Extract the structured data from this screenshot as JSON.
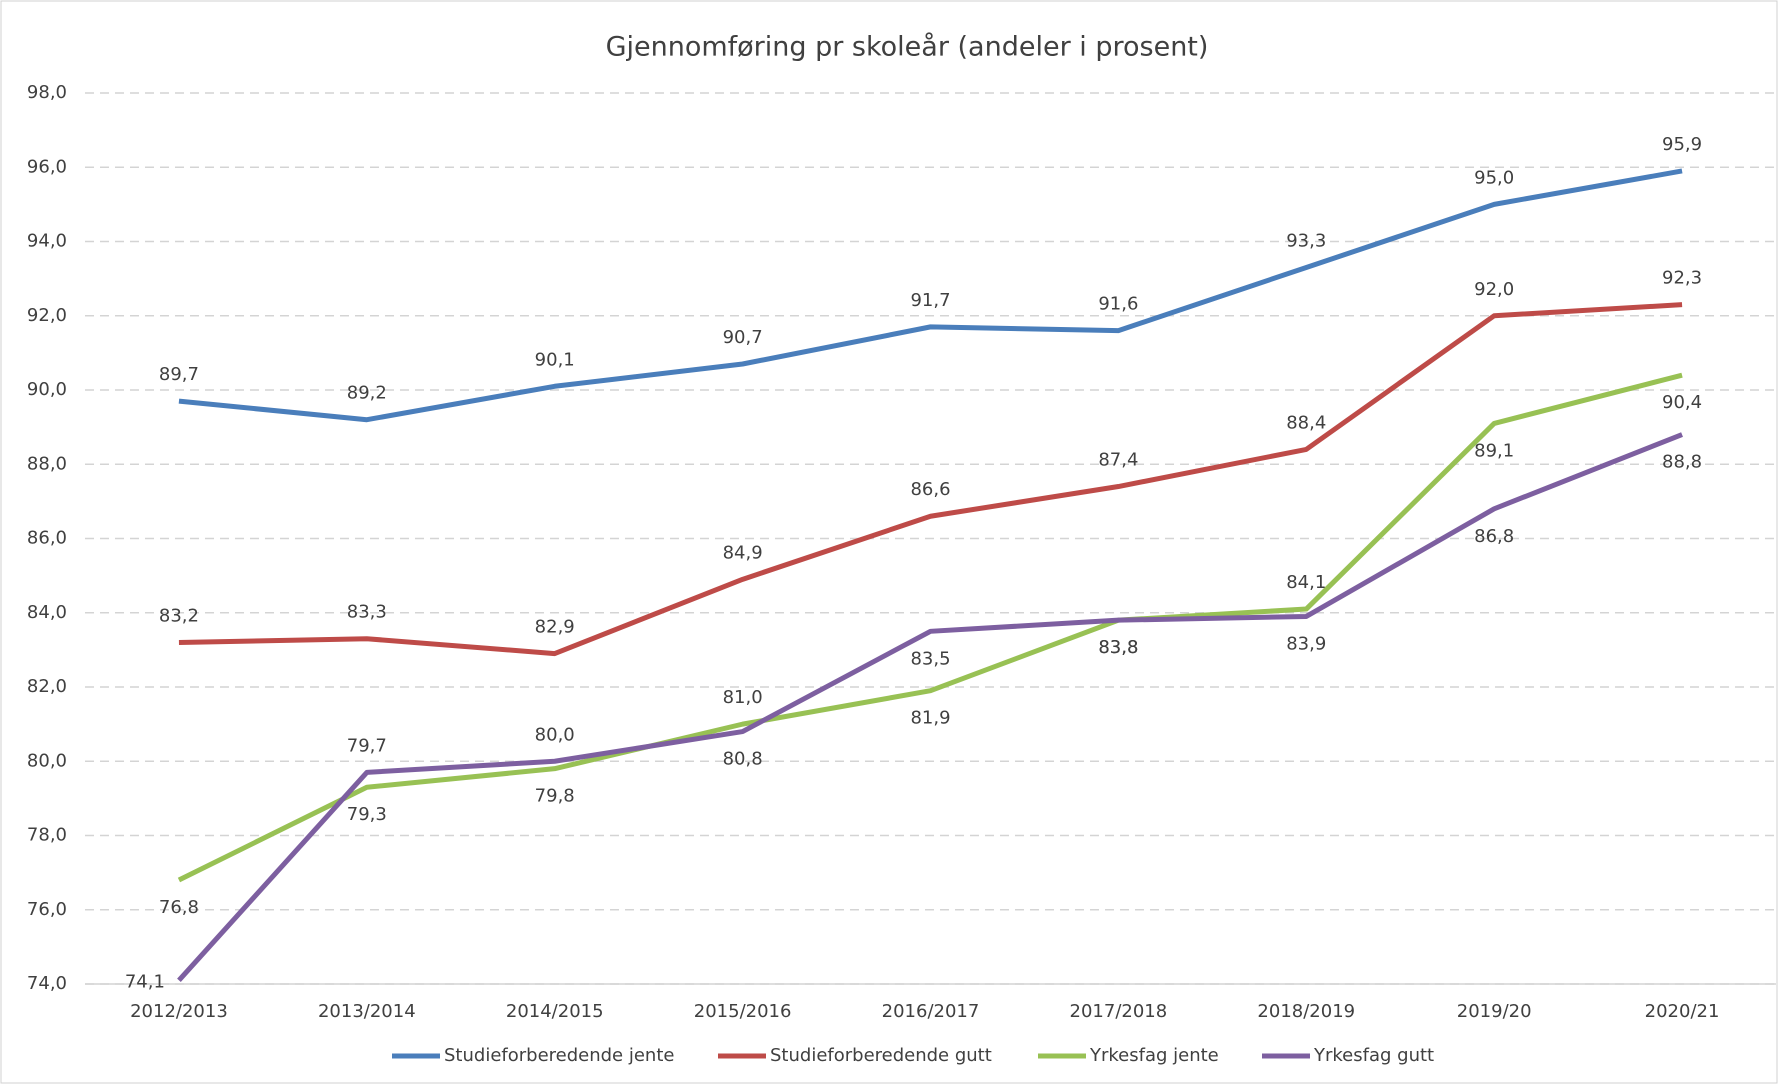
{
  "chart_data": {
    "type": "line",
    "title": "Gjennomføring pr skoleår (andeler i prosent)",
    "categories": [
      "2012/2013",
      "2013/2014",
      "2014/2015",
      "2015/2016",
      "2016/2017",
      "2017/2018",
      "2018/2019",
      "2019/20",
      "2020/21"
    ],
    "series": [
      {
        "name": "Studieforberedende jente",
        "color": "#4a7ebb",
        "values": [
          89.7,
          89.2,
          90.1,
          90.7,
          91.7,
          91.6,
          93.3,
          95.0,
          95.9
        ],
        "value_labels": [
          "89,7",
          "89,2",
          "90,1",
          "90,7",
          "91,7",
          "91,6",
          "93,3",
          "95,0",
          "95,9"
        ]
      },
      {
        "name": "Studieforberedende gutt",
        "color": "#be4b48",
        "values": [
          83.2,
          83.3,
          82.9,
          84.9,
          86.6,
          87.4,
          88.4,
          92.0,
          92.3
        ],
        "value_labels": [
          "83,2",
          "83,3",
          "82,9",
          "84,9",
          "86,6",
          "87,4",
          "88,4",
          "92,0",
          "92,3"
        ]
      },
      {
        "name": "Yrkesfag jente",
        "color": "#98c154",
        "values": [
          76.8,
          79.3,
          79.8,
          81.0,
          81.9,
          83.8,
          84.1,
          89.1,
          90.4
        ],
        "value_labels": [
          "76,8",
          "79,3",
          "79,8",
          "81,0",
          "81,9",
          "83,8",
          "84,1",
          "89,1",
          "90,4"
        ]
      },
      {
        "name": "Yrkesfag gutt",
        "color": "#7d5fa0",
        "values": [
          74.1,
          79.7,
          80.0,
          80.8,
          83.5,
          83.8,
          83.9,
          86.8,
          88.8
        ],
        "value_labels": [
          "74,1",
          "79,7",
          "80,0",
          "80,8",
          "83,5",
          "83,8",
          "83,9",
          "86,8",
          "88,8"
        ]
      }
    ],
    "ylim": [
      74,
      98
    ],
    "yticks": [
      {
        "value": 74,
        "label": "74,0"
      },
      {
        "value": 76,
        "label": "76,0"
      },
      {
        "value": 78,
        "label": "78,0"
      },
      {
        "value": 80,
        "label": "80,0"
      },
      {
        "value": 82,
        "label": "82,0"
      },
      {
        "value": 84,
        "label": "84,0"
      },
      {
        "value": 86,
        "label": "86,0"
      },
      {
        "value": 88,
        "label": "88,0"
      },
      {
        "value": 90,
        "label": "90,0"
      },
      {
        "value": 92,
        "label": "92,0"
      },
      {
        "value": 94,
        "label": "94,0"
      },
      {
        "value": 96,
        "label": "96,0"
      },
      {
        "value": 98,
        "label": "98,0"
      }
    ],
    "grid": true,
    "legend": "bottom"
  }
}
